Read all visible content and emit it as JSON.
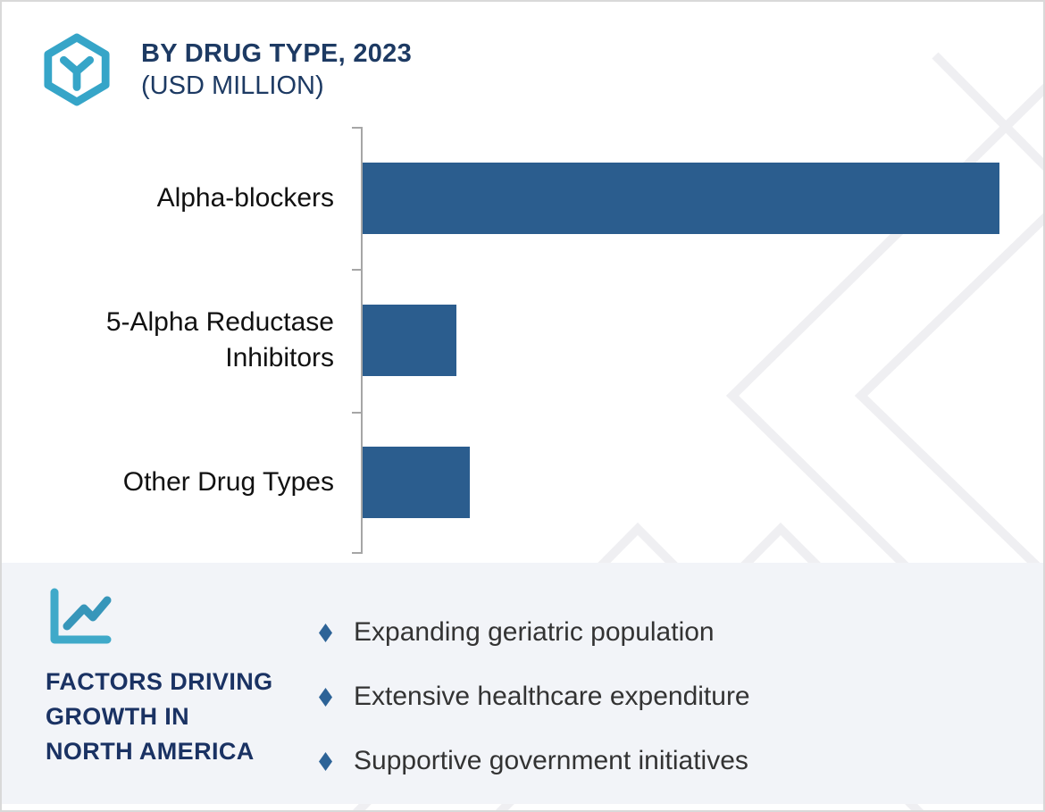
{
  "header": {
    "title": "BY DRUG TYPE, 2023",
    "subtitle": "(USD MILLION)",
    "logo_icon": "hexagon-cube-icon",
    "title_color": "#1d3a63",
    "logo_color": "#36a5c8"
  },
  "chart_data": {
    "type": "bar",
    "orientation": "horizontal",
    "title": "BY DRUG TYPE, 2023 (USD MILLION)",
    "categories": [
      "Alpha-blockers",
      "5-Alpha Reductase Inhibitors",
      "Other Drug Types"
    ],
    "values_pct_of_max": [
      100,
      14.7,
      16.8
    ],
    "value_axis_labels_shown": false,
    "data_labels_shown": false,
    "xlabel": "",
    "ylabel": "",
    "grid": false,
    "legend": false,
    "bar_color": "#2b5d8e",
    "axis_color": "#a6a6a6",
    "label_color": "#111111"
  },
  "factors_panel": {
    "icon": "line-chart-icon",
    "icon_color": "#3fa9c9",
    "icon_line_color": "#3796ba",
    "heading": "FACTORS DRIVING\nGROWTH IN\nNORTH AMERICA",
    "heading_color": "#1a3263",
    "background_color": "#f2f4f8",
    "bullet_marker": "diamond-bullet",
    "bullet_marker_color": "#2d6397",
    "bullet_text_color": "#333333",
    "bullets": [
      "Expanding geriatric population",
      "Extensive healthcare expenditure",
      "Supportive government initiatives"
    ]
  },
  "decor": {
    "watermark": "chevron-pattern",
    "watermark_color": "#efeff2",
    "border_color": "#d9d9d9"
  }
}
